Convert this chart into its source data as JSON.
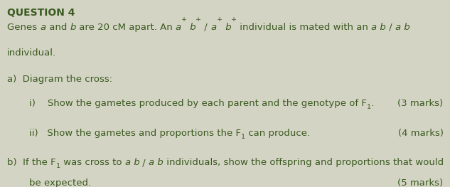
{
  "background_color": "#d4d4c4",
  "text_color": "#3a5a20",
  "fontsize": 9.5,
  "figsize": [
    6.33,
    2.63
  ],
  "dpi": 100
}
